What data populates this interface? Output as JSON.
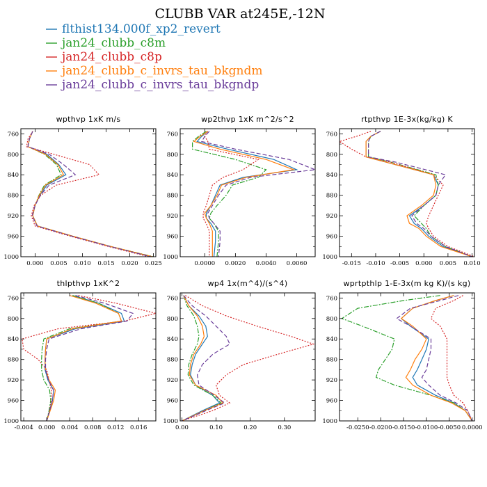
{
  "title": "CLUBB VAR at245E,-12N",
  "legend": [
    {
      "label": "flthist134.000f_xp2_revert",
      "color": "#1f77b4",
      "dash": "none"
    },
    {
      "label": "jan24_clubb_c8m",
      "color": "#2ca02c",
      "dash": "7,2,2,2"
    },
    {
      "label": "jan24_clubb_c8p",
      "color": "#d62728",
      "dash": "2,2"
    },
    {
      "label": "jan24_clubb_c_invrs_tau_bkgndm",
      "color": "#ff7f0e",
      "dash": "none"
    },
    {
      "label": "jan24_clubb_c_invrs_tau_bkgndp",
      "color": "#6a3d9a",
      "dash": "6,3"
    }
  ],
  "chart_data": [
    {
      "type": "line",
      "title": "wpthvp   1xK m/s",
      "xlim": [
        -0.003,
        0.0255
      ],
      "xticks": [
        "0.000",
        "0.005",
        "0.010",
        "0.015",
        "0.020",
        "0.025"
      ],
      "xtick_values": [
        0,
        0.005,
        0.01,
        0.015,
        0.02,
        0.025
      ],
      "ylim": [
        1000,
        750
      ],
      "yticks": [
        760,
        800,
        840,
        880,
        920,
        960,
        1000
      ],
      "y": [
        755,
        770,
        785,
        800,
        820,
        840,
        860,
        880,
        900,
        920,
        940,
        960,
        980,
        1000
      ],
      "series": [
        {
          "values": [
            -0.0005,
            -0.0012,
            -0.0015,
            0.0025,
            0.005,
            0.0065,
            0.0025,
            0.001,
            0.0,
            -0.0005,
            0.0005,
            0.008,
            0.016,
            0.0245
          ]
        },
        {
          "values": [
            -0.0005,
            -0.0012,
            -0.0015,
            0.002,
            0.0045,
            0.0055,
            0.002,
            0.0008,
            0.0,
            -0.0005,
            0.0005,
            0.008,
            0.016,
            0.025
          ]
        },
        {
          "values": [
            -0.0005,
            -0.0015,
            -0.0018,
            0.004,
            0.0115,
            0.0135,
            0.0045,
            0.0012,
            -0.0002,
            -0.0008,
            0.0,
            0.0075,
            0.0155,
            0.024
          ]
        },
        {
          "values": [
            -0.0005,
            -0.0012,
            -0.0015,
            0.0022,
            0.0048,
            0.006,
            0.0022,
            0.0009,
            0.0,
            -0.0005,
            0.0005,
            0.008,
            0.016,
            0.0248
          ]
        },
        {
          "values": [
            -0.0005,
            -0.0012,
            -0.0015,
            0.003,
            0.006,
            0.0085,
            0.003,
            0.0011,
            0.0,
            -0.0006,
            0.0004,
            0.0078,
            0.0158,
            0.0245
          ]
        }
      ]
    },
    {
      "type": "line",
      "title": "wp2thvp   1xK m^2/s^2",
      "xlim": [
        -0.0016,
        0.0072
      ],
      "xticks": [
        "0.0000",
        "0.0020",
        "0.0040",
        "0.0060"
      ],
      "xtick_values": [
        0,
        0.002,
        0.004,
        0.006
      ],
      "ylim": [
        1000,
        750
      ],
      "yticks": [
        760,
        800,
        840,
        880,
        920,
        960,
        1000
      ],
      "y": [
        755,
        765,
        775,
        790,
        810,
        830,
        845,
        860,
        880,
        900,
        915,
        925,
        935,
        950,
        970,
        1000
      ],
      "series": [
        {
          "values": [
            0.0002,
            -0.0002,
            -0.0005,
            0.0015,
            0.0045,
            0.006,
            0.0025,
            0.001,
            0.0007,
            0.0004,
            0.0001,
            0.0001,
            0.0004,
            0.0007,
            0.0007,
            0.0006
          ]
        },
        {
          "values": [
            0.0001,
            -0.0004,
            -0.0008,
            -0.0008,
            0.002,
            0.004,
            0.0035,
            0.0018,
            0.0014,
            0.0008,
            0.0004,
            0.0003,
            0.0006,
            0.0009,
            0.0009,
            0.0008
          ]
        },
        {
          "values": [
            0.0002,
            0.0,
            0.0002,
            0.0003,
            0.0035,
            0.0025,
            0.0012,
            0.0005,
            0.0003,
            0.0001,
            -0.0001,
            -0.0001,
            0.0001,
            0.0003,
            0.0003,
            0.0003
          ]
        },
        {
          "values": [
            0.0002,
            -0.0003,
            -0.0007,
            0.001,
            0.004,
            0.0058,
            0.0027,
            0.0011,
            0.0008,
            0.0004,
            0.0,
            0.0001,
            0.0003,
            0.0005,
            0.0005,
            0.0005
          ]
        },
        {
          "values": [
            0.0003,
            0.0,
            -0.0002,
            0.002,
            0.0055,
            0.0072,
            0.003,
            0.0014,
            0.0009,
            0.0005,
            0.0002,
            0.0003,
            0.0006,
            0.001,
            0.001,
            0.0009
          ]
        }
      ]
    },
    {
      "type": "line",
      "title": "rtpthvp   1E-3x(kg/kg) K",
      "xlim": [
        -0.0175,
        0.0105
      ],
      "xticks": [
        "-0.015",
        "-0.010",
        "-0.005",
        "0.000",
        "0.005",
        "0.010"
      ],
      "xtick_values": [
        -0.015,
        -0.01,
        -0.005,
        0,
        0.005,
        0.01
      ],
      "ylim": [
        1000,
        750
      ],
      "yticks": [
        760,
        800,
        840,
        880,
        920,
        960,
        1000
      ],
      "y": [
        755,
        765,
        775,
        790,
        805,
        815,
        840,
        860,
        880,
        900,
        920,
        935,
        945,
        960,
        980,
        1000
      ],
      "series": [
        {
          "values": [
            -0.009,
            -0.011,
            -0.012,
            -0.012,
            -0.012,
            -0.008,
            0.002,
            0.003,
            0.0025,
            0.0,
            -0.003,
            -0.002,
            -0.0005,
            0.001,
            0.004,
            0.01
          ]
        },
        {
          "values": [
            -0.009,
            -0.011,
            -0.0115,
            -0.0115,
            -0.0115,
            -0.007,
            0.0025,
            0.003,
            0.0025,
            0.0,
            -0.002,
            -0.0005,
            0.0005,
            0.0015,
            0.0045,
            0.01
          ]
        },
        {
          "values": [
            -0.011,
            -0.014,
            -0.0175,
            -0.015,
            -0.012,
            -0.007,
            0.002,
            0.004,
            0.003,
            0.002,
            0.001,
            0.0005,
            0.001,
            0.002,
            0.005,
            0.0105
          ]
        },
        {
          "values": [
            -0.009,
            -0.011,
            -0.012,
            -0.012,
            -0.012,
            -0.008,
            0.002,
            0.0025,
            0.002,
            -0.0005,
            -0.0035,
            -0.003,
            -0.001,
            0.0005,
            0.0035,
            0.01
          ]
        },
        {
          "values": [
            -0.009,
            -0.011,
            -0.0115,
            -0.0115,
            -0.0115,
            -0.006,
            0.0045,
            0.003,
            0.0025,
            0.0,
            -0.0025,
            -0.0015,
            0.0,
            0.0015,
            0.0045,
            0.01
          ]
        }
      ]
    },
    {
      "type": "line",
      "title": "thlpthvp   1xK^2",
      "xlim": [
        -0.0045,
        0.019
      ],
      "xticks": [
        "-0.004",
        "0.000",
        "0.004",
        "0.008",
        "0.012",
        "0.016"
      ],
      "xtick_values": [
        -0.004,
        0,
        0.004,
        0.008,
        0.012,
        0.016
      ],
      "ylim": [
        1000,
        750
      ],
      "yticks": [
        760,
        800,
        840,
        880,
        920,
        960,
        1000
      ],
      "y": [
        755,
        770,
        790,
        805,
        820,
        840,
        860,
        880,
        900,
        920,
        940,
        960,
        980,
        1000
      ],
      "series": [
        {
          "values": [
            0.0045,
            0.009,
            0.013,
            0.0135,
            0.005,
            0.0,
            -0.0002,
            -0.0003,
            -0.0003,
            0.0002,
            0.0012,
            0.001,
            0.0005,
            0.0
          ]
        },
        {
          "values": [
            0.0045,
            0.009,
            0.0125,
            0.013,
            0.004,
            -0.0005,
            -0.0008,
            -0.0009,
            -0.0009,
            -0.0005,
            0.0005,
            0.0007,
            0.0004,
            0.0
          ]
        },
        {
          "values": [
            0.0055,
            0.012,
            0.019,
            0.0135,
            0.002,
            -0.0043,
            -0.004,
            -0.0015,
            0.0,
            0.0004,
            0.0008,
            0.0008,
            0.0005,
            0.0
          ]
        },
        {
          "values": [
            0.004,
            0.0085,
            0.0125,
            0.013,
            0.0045,
            0.0,
            -0.0002,
            -0.0003,
            -0.0002,
            0.0004,
            0.0015,
            0.0012,
            0.0006,
            0.0
          ]
        },
        {
          "values": [
            0.005,
            0.01,
            0.015,
            0.014,
            0.006,
            0.0004,
            0.0,
            -0.0002,
            -0.0002,
            0.0003,
            0.0012,
            0.001,
            0.0005,
            0.0
          ]
        }
      ]
    },
    {
      "type": "line",
      "title": "wp4   1x(m^4)/(s^4)",
      "xlim": [
        -0.005,
        0.39
      ],
      "xticks": [
        "0.00",
        "0.10",
        "0.20",
        "0.30"
      ],
      "xtick_values": [
        0,
        0.1,
        0.2,
        0.3
      ],
      "ylim": [
        1000,
        750
      ],
      "yticks": [
        760,
        800,
        840,
        880,
        920,
        960,
        1000
      ],
      "y": [
        755,
        775,
        795,
        815,
        835,
        850,
        870,
        890,
        910,
        930,
        950,
        965,
        980,
        1000
      ],
      "series": [
        {
          "values": [
            0.005,
            0.02,
            0.05,
            0.07,
            0.075,
            0.06,
            0.04,
            0.03,
            0.025,
            0.04,
            0.09,
            0.11,
            0.06,
            0.0
          ]
        },
        {
          "values": [
            0.005,
            0.015,
            0.035,
            0.045,
            0.05,
            0.045,
            0.03,
            0.02,
            0.018,
            0.035,
            0.09,
            0.115,
            0.065,
            0.0
          ]
        },
        {
          "values": [
            0.01,
            0.06,
            0.13,
            0.22,
            0.32,
            0.385,
            0.28,
            0.18,
            0.13,
            0.1,
            0.11,
            0.14,
            0.09,
            0.0
          ]
        },
        {
          "values": [
            0.005,
            0.02,
            0.045,
            0.06,
            0.065,
            0.055,
            0.035,
            0.025,
            0.022,
            0.04,
            0.1,
            0.12,
            0.065,
            0.0
          ]
        },
        {
          "values": [
            0.005,
            0.03,
            0.07,
            0.1,
            0.13,
            0.14,
            0.09,
            0.06,
            0.045,
            0.05,
            0.095,
            0.125,
            0.07,
            0.0
          ]
        }
      ]
    },
    {
      "type": "line",
      "title": "wprtpthlp   1-E-3x(m kg K)/(s kg)",
      "xlim": [
        -0.029,
        0.0005
      ],
      "xticks": [
        "-0.0250",
        "-0.0200",
        "-0.0150",
        "-0.0100",
        "-0.0050",
        "0.0000"
      ],
      "xtick_values": [
        -0.025,
        -0.02,
        -0.015,
        -0.01,
        -0.005,
        0
      ],
      "ylim": [
        1000,
        750
      ],
      "yticks": [
        760,
        800,
        840,
        880,
        920,
        960,
        1000
      ],
      "y": [
        755,
        765,
        780,
        800,
        815,
        840,
        860,
        880,
        900,
        915,
        930,
        950,
        965,
        980,
        1000
      ],
      "series": [
        {
          "values": [
            -0.004,
            -0.008,
            -0.013,
            -0.0155,
            -0.0135,
            -0.0095,
            -0.01,
            -0.011,
            -0.012,
            -0.013,
            -0.012,
            -0.008,
            -0.004,
            -0.0015,
            0.0
          ]
        },
        {
          "values": [
            -0.007,
            -0.015,
            -0.025,
            -0.0285,
            -0.024,
            -0.017,
            -0.0175,
            -0.019,
            -0.0205,
            -0.021,
            -0.017,
            -0.009,
            -0.004,
            -0.0015,
            0.0
          ]
        },
        {
          "values": [
            -0.002,
            -0.004,
            -0.008,
            -0.009,
            -0.007,
            -0.0055,
            -0.0055,
            -0.0055,
            -0.0055,
            -0.0055,
            -0.005,
            -0.004,
            -0.002,
            -0.001,
            0.0
          ]
        },
        {
          "values": [
            -0.004,
            -0.008,
            -0.013,
            -0.0155,
            -0.013,
            -0.01,
            -0.011,
            -0.0125,
            -0.0135,
            -0.0145,
            -0.013,
            -0.009,
            -0.0045,
            -0.0015,
            0.0
          ]
        },
        {
          "values": [
            -0.003,
            -0.007,
            -0.0135,
            -0.0165,
            -0.0135,
            -0.009,
            -0.009,
            -0.0095,
            -0.01,
            -0.011,
            -0.0095,
            -0.007,
            -0.0035,
            -0.001,
            0.0
          ]
        }
      ]
    }
  ]
}
